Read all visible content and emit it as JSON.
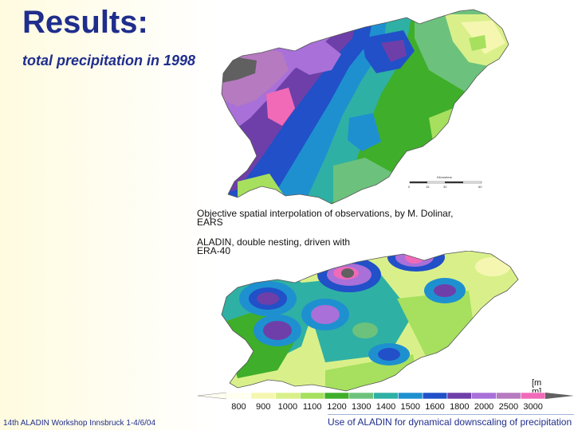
{
  "slide": {
    "title": "Results:",
    "subtitle": "total precipitation in 1998",
    "caption_obs": "Objective spatial interpolation of observations, by M. Dolinar, EARS",
    "caption_aladin": "ALADIN,  double nesting, driven with ERA-40",
    "unit_label_line1": "[m",
    "unit_label_line2": "m]",
    "scalebar_title": "Kilometers",
    "scalebar_ticks": [
      "0",
      "15",
      "30",
      "60"
    ],
    "footer_left": "14th ALADIN Workshop  Innsbruck 1-4/6/04",
    "footer_right": "Use of ALADIN for dynamical downscaling of  precipitation"
  },
  "legend": {
    "classes": [
      {
        "label": "800",
        "color": "#fffff0"
      },
      {
        "label": "900",
        "color": "#f5f7b0"
      },
      {
        "label": "1000",
        "color": "#d9f08a"
      },
      {
        "label": "1100",
        "color": "#a6e05e"
      },
      {
        "label": "1200",
        "color": "#3fae2a"
      },
      {
        "label": "1300",
        "color": "#6cc27c"
      },
      {
        "label": "1400",
        "color": "#2fb0a4"
      },
      {
        "label": "1500",
        "color": "#1e90d0"
      },
      {
        "label": "1600",
        "color": "#2150c8"
      },
      {
        "label": "1800",
        "color": "#6e3fa8"
      },
      {
        "label": "2000",
        "color": "#a870d8"
      },
      {
        "label": "2500",
        "color": "#b67ac0"
      },
      {
        "label": "3000",
        "color": "#f06ab8"
      }
    ],
    "high_color": "#606060"
  }
}
